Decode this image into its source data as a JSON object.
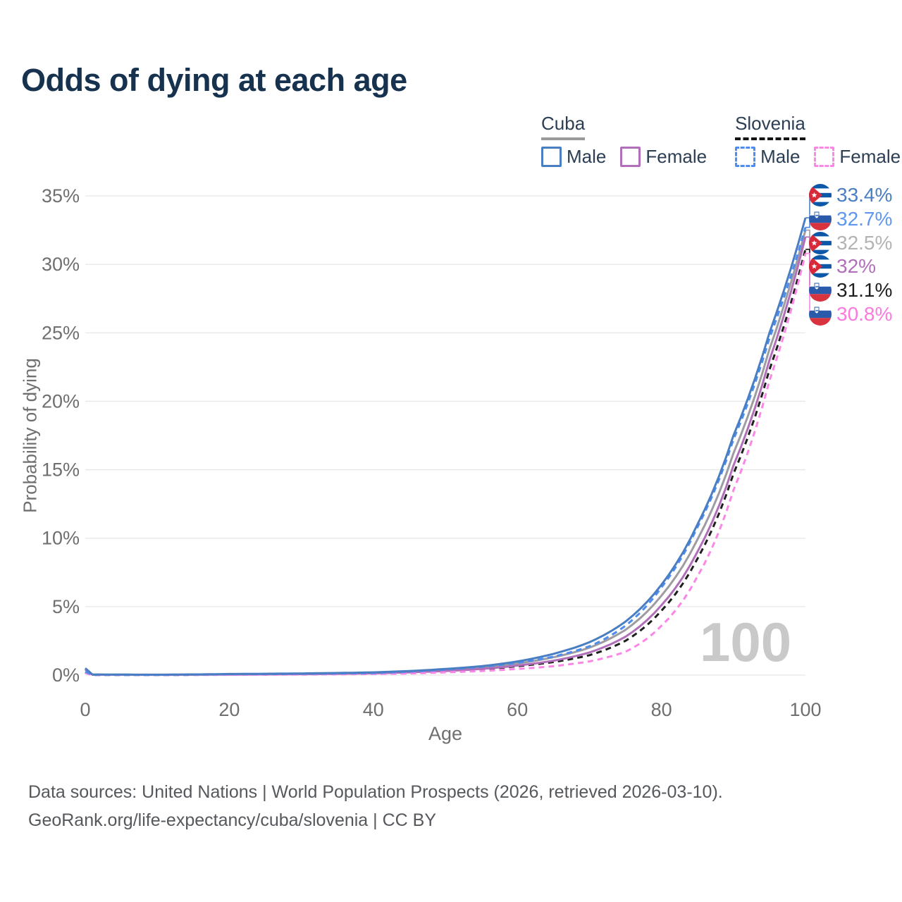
{
  "header": {
    "title": "Odds of dying at each age"
  },
  "legend": {
    "groups": [
      {
        "title": "Cuba",
        "line_style": "solid",
        "underline_color": "#9a9a9a",
        "items": [
          {
            "label": "Male",
            "color": "#4a7ec2"
          },
          {
            "label": "Female",
            "color": "#b06fb8"
          }
        ]
      },
      {
        "title": "Slovenia",
        "line_style": "dashed",
        "underline_color": "#141414",
        "items": [
          {
            "label": "Male",
            "color": "#4e8cf0"
          },
          {
            "label": "Female",
            "color": "#fb86e6"
          }
        ]
      }
    ]
  },
  "chart_data": {
    "type": "line",
    "title": "Odds of dying at each age",
    "xlabel": "Age",
    "ylabel": "Probability of dying",
    "xlim": [
      0,
      100
    ],
    "ylim": [
      0,
      35
    ],
    "x_ticks": [
      0,
      20,
      40,
      60,
      80,
      100
    ],
    "y_tick_values": [
      0,
      5,
      10,
      15,
      20,
      25,
      30,
      35
    ],
    "y_tick_labels": [
      "0%",
      "5%",
      "10%",
      "15%",
      "20%",
      "25%",
      "30%",
      "35%"
    ],
    "grid": "horizontal",
    "legend_position": "top-right",
    "watermark": "100",
    "ages": [
      0,
      1,
      10,
      20,
      30,
      40,
      45,
      50,
      55,
      60,
      65,
      70,
      75,
      80,
      85,
      90,
      95,
      100
    ],
    "series": [
      {
        "name": "Cuba male",
        "country": "cuba",
        "sex": "male",
        "style": "solid",
        "color": "#4a7ec2",
        "label_color": "#4a7ec2",
        "end_label": "33.4%",
        "values": [
          0.5,
          0.04,
          0.03,
          0.08,
          0.12,
          0.2,
          0.3,
          0.45,
          0.65,
          1.0,
          1.55,
          2.4,
          3.9,
          6.6,
          11.0,
          17.5,
          25.0,
          33.4
        ]
      },
      {
        "name": "Slovenia male",
        "country": "slovenia",
        "sex": "male",
        "style": "dashed",
        "color": "#4e8cf0",
        "label_color": "#5e96f2",
        "end_label": "32.7%",
        "values": [
          0.25,
          0.02,
          0.015,
          0.06,
          0.09,
          0.15,
          0.25,
          0.4,
          0.6,
          0.9,
          1.35,
          2.1,
          3.6,
          6.4,
          10.8,
          17.2,
          24.6,
          32.7
        ]
      },
      {
        "name": "Cuba both sexes",
        "country": "cuba",
        "sex": "both",
        "style": "solid",
        "color": "#9c9ca1",
        "label_color": "#b3b3b3",
        "end_label": "32.5%",
        "values": [
          0.45,
          0.035,
          0.025,
          0.06,
          0.1,
          0.17,
          0.26,
          0.38,
          0.55,
          0.85,
          1.3,
          2.0,
          3.3,
          5.8,
          9.9,
          16.2,
          23.8,
          32.5
        ]
      },
      {
        "name": "Cuba female",
        "country": "cuba",
        "sex": "female",
        "style": "solid",
        "color": "#b06fb8",
        "label_color": "#b06fb8",
        "end_label": "32%",
        "values": [
          0.4,
          0.03,
          0.02,
          0.04,
          0.07,
          0.13,
          0.2,
          0.3,
          0.45,
          0.7,
          1.05,
          1.65,
          2.8,
          5.1,
          9.0,
          15.3,
          23.0,
          32.0
        ]
      },
      {
        "name": "Slovenia both sexes",
        "country": "slovenia",
        "sex": "both",
        "style": "dashed",
        "color": "#1f1f1f",
        "label_color": "#1f1f1f",
        "end_label": "31.1%",
        "values": [
          0.2,
          0.015,
          0.01,
          0.04,
          0.06,
          0.11,
          0.17,
          0.28,
          0.42,
          0.65,
          0.95,
          1.45,
          2.5,
          4.7,
          8.5,
          14.7,
          22.3,
          31.1
        ]
      },
      {
        "name": "Slovenia female",
        "country": "slovenia",
        "sex": "female",
        "style": "dashed",
        "color": "#fb86e6",
        "label_color": "#fb7ae0",
        "end_label": "30.8%",
        "values": [
          0.15,
          0.01,
          0.008,
          0.02,
          0.04,
          0.08,
          0.12,
          0.2,
          0.3,
          0.45,
          0.65,
          1.0,
          1.7,
          3.6,
          7.2,
          13.5,
          21.5,
          30.8
        ]
      }
    ]
  },
  "footer": {
    "line1": "Data sources: United Nations | World Population Prospects (2026, retrieved 2026-03-10).",
    "line2": "GeoRank.org/life-expectancy/cuba/slovenia | CC BY"
  }
}
